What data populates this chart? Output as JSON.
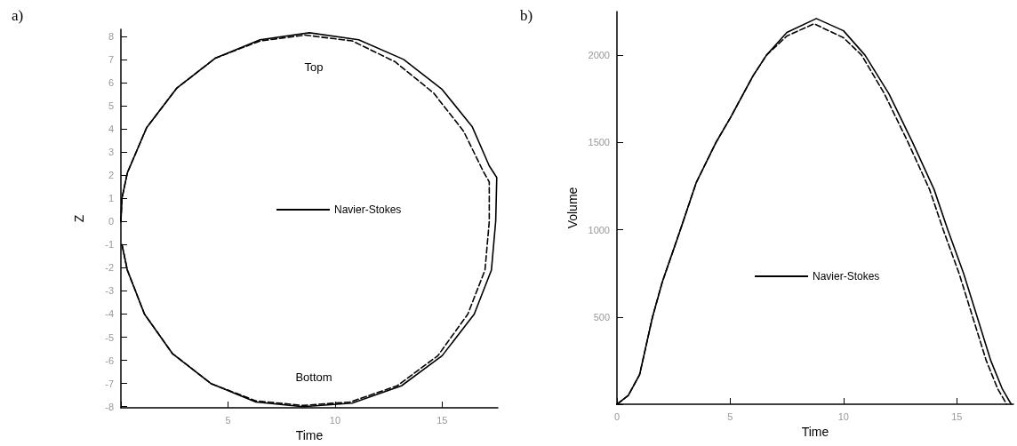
{
  "chart_data": [
    {
      "type": "line",
      "title": "a)",
      "xlabel": "Time",
      "ylabel": "Z",
      "xlim": [
        0,
        17.6
      ],
      "ylim": [
        -8.05,
        8.3
      ],
      "xticks": [
        {
          "value": 0,
          "label": null
        },
        5,
        10,
        15
      ],
      "yticks": [
        -8,
        -7,
        -6,
        -5,
        -4,
        -3,
        -2,
        -1,
        0,
        1,
        2,
        3,
        4,
        5,
        6,
        7,
        8
      ],
      "grid": false,
      "legend": "center",
      "marker": "none",
      "annotations": [
        "Top",
        "Bottom"
      ],
      "series": [
        {
          "color": "#000000",
          "line_style": "dashed",
          "x": [
            0,
            0.05,
            0.3,
            1.2,
            2.6,
            4.4,
            6.5,
            8.6,
            10.8,
            12.8,
            14.6,
            16.0,
            16.9,
            17.2,
            17.2,
            17.0,
            16.2,
            14.8,
            12.9,
            10.7,
            8.5,
            6.3,
            4.2,
            2.4,
            1.1,
            0.3,
            0.05
          ],
          "values": [
            0,
            1,
            2.1,
            4.05,
            5.75,
            7.05,
            7.8,
            8.05,
            7.8,
            6.9,
            5.55,
            3.9,
            2.2,
            1.7,
            0,
            -2.1,
            -4.0,
            -5.8,
            -7.1,
            -7.8,
            -7.95,
            -7.75,
            -7.0,
            -5.7,
            -4.0,
            -2.1,
            -1
          ]
        },
        {
          "name": "Navier-Stokes",
          "color": "#000000",
          "line_style": "solid",
          "x": [
            0,
            0.05,
            0.3,
            1.2,
            2.6,
            4.4,
            6.5,
            8.8,
            11.1,
            13.2,
            15.0,
            16.4,
            17.2,
            17.55,
            17.5,
            17.3,
            16.5,
            15.0,
            13.1,
            10.8,
            8.5,
            6.3,
            4.2,
            2.4,
            1.1,
            0.3,
            0.05
          ],
          "values": [
            0,
            1,
            2.1,
            4.05,
            5.75,
            7.05,
            7.85,
            8.15,
            7.85,
            7.0,
            5.7,
            4.1,
            2.4,
            1.9,
            0,
            -2.1,
            -4.0,
            -5.8,
            -7.1,
            -7.85,
            -8.0,
            -7.8,
            -7.0,
            -5.7,
            -4.0,
            -2.1,
            -1
          ]
        }
      ]
    },
    {
      "type": "line",
      "title": "b)",
      "xlabel": "Time",
      "ylabel": "Volume",
      "xlim": [
        0,
        17.5
      ],
      "ylim": [
        0,
        2250
      ],
      "xticks": [
        0,
        5,
        10,
        15
      ],
      "yticks": [
        {
          "value": 0,
          "label": null
        },
        500,
        1000,
        1500,
        2000
      ],
      "grid": false,
      "legend": "center",
      "marker": "none",
      "series": [
        {
          "color": "#000000",
          "line_style": "dashed",
          "x": [
            0,
            0.5,
            1,
            1.57,
            2,
            2.8,
            3.5,
            4.37,
            5,
            6,
            6.6,
            7.5,
            8.7,
            10,
            10.8,
            11.8,
            12.85,
            13.8,
            14.4,
            15.1,
            15.7,
            16.3,
            16.8,
            17.2
          ],
          "values": [
            0,
            50,
            170,
            500,
            700,
            1000,
            1270,
            1500,
            1640,
            1880,
            2000,
            2110,
            2180,
            2100,
            2000,
            1780,
            1500,
            1230,
            1000,
            750,
            500,
            250,
            90,
            0
          ]
        },
        {
          "name": "Navier-Stokes",
          "color": "#000000",
          "line_style": "solid",
          "x": [
            0,
            0.5,
            1,
            1.57,
            2,
            2.8,
            3.5,
            4.37,
            5,
            6,
            6.6,
            7.5,
            8.8,
            10,
            10.95,
            12,
            13.05,
            14,
            14.6,
            15.3,
            15.9,
            16.5,
            17,
            17.4
          ],
          "values": [
            0,
            50,
            170,
            500,
            700,
            1000,
            1270,
            1500,
            1640,
            1880,
            2000,
            2130,
            2210,
            2140,
            2000,
            1780,
            1500,
            1230,
            1000,
            750,
            500,
            250,
            90,
            0
          ]
        }
      ]
    }
  ]
}
